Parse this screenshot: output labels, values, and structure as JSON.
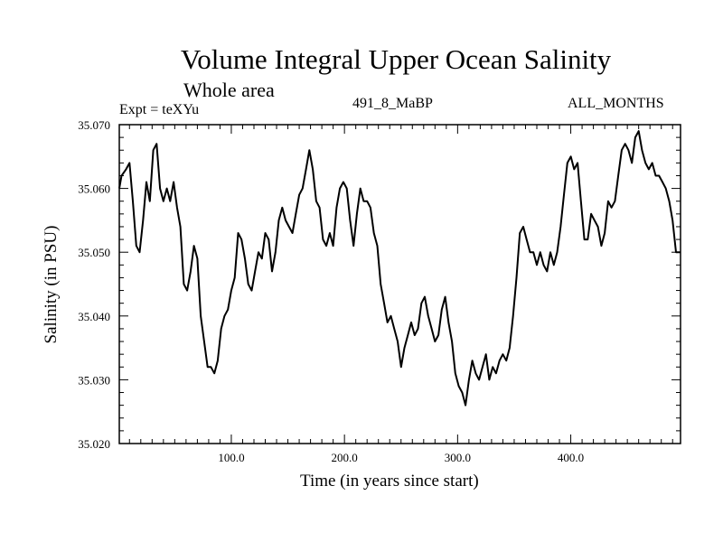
{
  "chart_data": {
    "type": "line",
    "title": "Volume Integral Upper Ocean Salinity",
    "subtitle": "Whole area",
    "experiment_label": "Expt = teXYu",
    "experiment_id": "491_8_MaBP",
    "months_label": "ALL_MONTHS",
    "xlabel": "Time (in years since start)",
    "ylabel": "Salinity (in PSU)",
    "xlim": [
      1,
      497
    ],
    "ylim": [
      35.02,
      35.07
    ],
    "x_ticks": [
      100,
      200,
      300,
      400
    ],
    "x_tick_labels": [
      "100.0",
      "200.0",
      "300.0",
      "400.0"
    ],
    "y_ticks": [
      35.02,
      35.03,
      35.04,
      35.05,
      35.06,
      35.07
    ],
    "y_tick_labels": [
      "35.020",
      "35.030",
      "35.040",
      "35.050",
      "35.060",
      "35.070"
    ],
    "grid": false,
    "series": [
      {
        "name": "",
        "color": "#000000",
        "x": [
          1,
          3,
          7,
          10,
          13,
          16,
          19,
          22,
          25,
          28,
          31,
          34,
          37,
          40,
          43,
          46,
          49,
          52,
          55,
          58,
          61,
          64,
          67,
          70,
          73,
          76,
          79,
          82,
          85,
          88,
          91,
          94,
          97,
          100,
          103,
          106,
          109,
          112,
          115,
          118,
          121,
          124,
          127,
          130,
          133,
          136,
          139,
          142,
          145,
          148,
          151,
          154,
          157,
          160,
          163,
          166,
          169,
          172,
          175,
          178,
          181,
          184,
          187,
          190,
          193,
          196,
          199,
          202,
          205,
          208,
          211,
          214,
          217,
          220,
          223,
          226,
          229,
          232,
          235,
          238,
          241,
          244,
          247,
          250,
          253,
          256,
          259,
          262,
          265,
          268,
          271,
          274,
          277,
          280,
          283,
          286,
          289,
          292,
          295,
          298,
          301,
          304,
          307,
          310,
          313,
          316,
          319,
          322,
          325,
          328,
          331,
          334,
          337,
          340,
          343,
          346,
          349,
          352,
          355,
          358,
          361,
          364,
          367,
          370,
          373,
          376,
          379,
          382,
          385,
          388,
          391,
          394,
          397,
          400,
          403,
          406,
          409,
          412,
          415,
          418,
          421,
          424,
          427,
          430,
          433,
          436,
          439,
          442,
          445,
          448,
          451,
          454,
          457,
          460,
          463,
          466,
          469,
          472,
          475,
          478,
          481,
          484,
          487,
          490,
          493,
          496,
          497
        ],
        "y": [
          35.06,
          35.062,
          35.063,
          35.064,
          35.058,
          35.051,
          35.05,
          35.055,
          35.061,
          35.058,
          35.066,
          35.067,
          35.06,
          35.058,
          35.06,
          35.058,
          35.061,
          35.057,
          35.054,
          35.045,
          35.044,
          35.047,
          35.051,
          35.049,
          35.04,
          35.036,
          35.032,
          35.032,
          35.031,
          35.033,
          35.038,
          35.04,
          35.041,
          35.044,
          35.046,
          35.053,
          35.052,
          35.049,
          35.045,
          35.044,
          35.047,
          35.05,
          35.049,
          35.053,
          35.052,
          35.047,
          35.05,
          35.055,
          35.057,
          35.055,
          35.054,
          35.053,
          35.056,
          35.059,
          35.06,
          35.063,
          35.066,
          35.063,
          35.058,
          35.057,
          35.052,
          35.051,
          35.053,
          35.051,
          35.057,
          35.06,
          35.061,
          35.06,
          35.055,
          35.051,
          35.056,
          35.06,
          35.058,
          35.058,
          35.057,
          35.053,
          35.051,
          35.045,
          35.042,
          35.039,
          35.04,
          35.038,
          35.036,
          35.032,
          35.035,
          35.037,
          35.039,
          35.037,
          35.038,
          35.042,
          35.043,
          35.04,
          35.038,
          35.036,
          35.037,
          35.041,
          35.043,
          35.039,
          35.036,
          35.031,
          35.029,
          35.028,
          35.026,
          35.03,
          35.033,
          35.031,
          35.03,
          35.032,
          35.034,
          35.03,
          35.032,
          35.031,
          35.033,
          35.034,
          35.033,
          35.035,
          35.04,
          35.046,
          35.053,
          35.054,
          35.052,
          35.05,
          35.05,
          35.048,
          35.05,
          35.048,
          35.047,
          35.05,
          35.048,
          35.05,
          35.054,
          35.059,
          35.064,
          35.065,
          35.063,
          35.064,
          35.058,
          35.052,
          35.052,
          35.056,
          35.055,
          35.054,
          35.051,
          35.053,
          35.058,
          35.057,
          35.058,
          35.062,
          35.066,
          35.067,
          35.066,
          35.064,
          35.068,
          35.069,
          35.066,
          35.064,
          35.063,
          35.064,
          35.062,
          35.062,
          35.061,
          35.06,
          35.058,
          35.055,
          35.05,
          35.05,
          35.05
        ]
      }
    ]
  }
}
